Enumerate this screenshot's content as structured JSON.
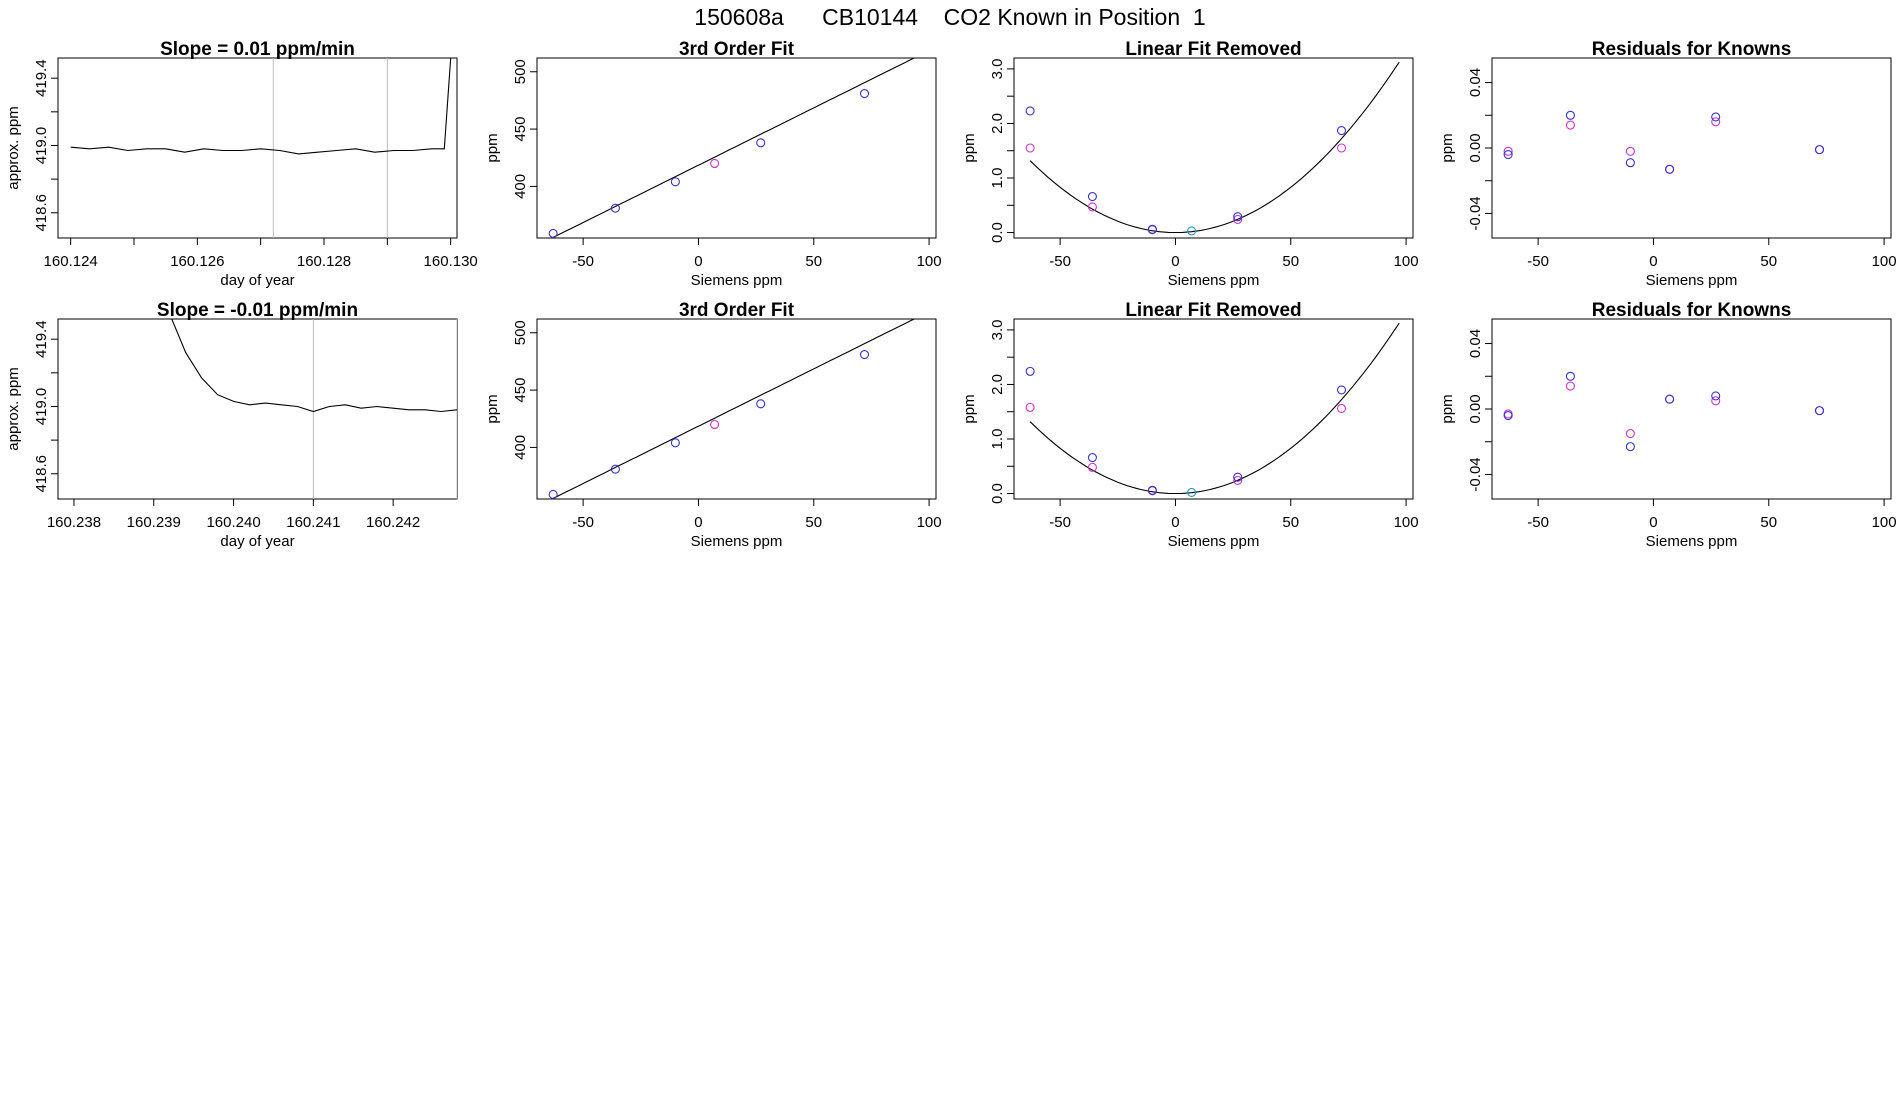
{
  "page_title": "150608a      CB10144    CO2 Known in Position  1",
  "colors": {
    "line": "#000000",
    "point_blue": "#3333cc",
    "point_magenta": "#cc33cc",
    "point_cyan": "#2299cc",
    "marker_line": "#bbbbbb"
  },
  "chart_data": [
    {
      "id": "r0c0",
      "type": "line",
      "title": "Slope =  0.01  ppm/min",
      "xlabel": "day of year",
      "ylabel": "approx. ppm",
      "xlim": [
        160.1238,
        160.1301
      ],
      "ylim": [
        418.45,
        419.52
      ],
      "xticks": [
        160.124,
        160.126,
        160.128,
        160.13
      ],
      "xtick_labels": [
        "160.124",
        "160.126",
        "160.128",
        "160.130"
      ],
      "minor_xticks": [
        160.125,
        160.127,
        160.129
      ],
      "yticks": [
        418.6,
        419.0,
        419.4
      ],
      "ytick_labels": [
        "418.6",
        "419.0",
        "419.4"
      ],
      "minor_yticks": [
        418.8,
        419.2
      ],
      "vlines": [
        160.1272,
        160.129
      ],
      "series": [
        {
          "x": [
            160.124,
            160.1243,
            160.1246,
            160.1249,
            160.1252,
            160.1255,
            160.1258,
            160.1261,
            160.1264,
            160.1267,
            160.127,
            160.1273,
            160.1276,
            160.1279,
            160.1282,
            160.1285,
            160.1288,
            160.1291,
            160.1294,
            160.1297,
            160.1299,
            160.13
          ],
          "y": [
            418.99,
            418.98,
            418.99,
            418.97,
            418.98,
            418.98,
            418.96,
            418.98,
            418.97,
            418.97,
            418.98,
            418.97,
            418.95,
            418.96,
            418.97,
            418.98,
            418.96,
            418.97,
            418.97,
            418.98,
            418.98,
            419.52
          ]
        }
      ]
    },
    {
      "id": "r0c1",
      "type": "scatter",
      "title": "3rd Order Fit",
      "xlabel": "Siemens ppm",
      "ylabel": "ppm",
      "xlim": [
        -70,
        103
      ],
      "ylim": [
        355,
        512
      ],
      "xticks": [
        -50,
        0,
        50,
        100
      ],
      "xtick_labels": [
        "-50",
        "0",
        "50",
        "100"
      ],
      "yticks": [
        400,
        450,
        500
      ],
      "ytick_labels": [
        "400",
        "450",
        "500"
      ],
      "curve": {
        "coefs": [
          418.5,
          1.0,
          0.0,
          0.0
        ],
        "x_range": [
          -63,
          97
        ]
      },
      "points_blue": {
        "x": [
          -63,
          -36,
          -10,
          27,
          72
        ],
        "y": [
          359,
          381,
          404,
          438,
          481
        ]
      },
      "points_magenta": {
        "x": [
          7
        ],
        "y": [
          420
        ]
      }
    },
    {
      "id": "r0c2",
      "type": "scatter",
      "title": "Linear Fit Removed",
      "xlabel": "Siemens ppm",
      "ylabel": "ppm",
      "xlim": [
        -70,
        103
      ],
      "ylim": [
        -0.1,
        3.2
      ],
      "xticks": [
        -50,
        0,
        50,
        100
      ],
      "xtick_labels": [
        "-50",
        "0",
        "50",
        "100"
      ],
      "yticks": [
        0,
        1,
        2,
        3
      ],
      "ytick_labels": [
        "0.0",
        "1.0",
        "2.0",
        "3.0"
      ],
      "minor_yticks": [
        0.5,
        1.5,
        2.5
      ],
      "curve": {
        "coefs": [
          0.0,
          0.0,
          0.000332,
          0.0
        ],
        "x_range": [
          -63,
          97
        ]
      },
      "points_blue": {
        "x": [
          -63,
          -36,
          -10,
          27,
          72
        ],
        "y": [
          2.23,
          0.66,
          0.06,
          0.29,
          1.87
        ]
      },
      "points_magenta": {
        "x": [
          -63,
          -36,
          -10,
          27,
          72
        ],
        "y": [
          1.55,
          0.47,
          0.05,
          0.24,
          1.55
        ]
      },
      "points_cyan": {
        "x": [
          7
        ],
        "y": [
          0.03
        ]
      }
    },
    {
      "id": "r0c3",
      "type": "scatter",
      "title": "Residuals for Knowns",
      "xlabel": "Siemens ppm",
      "ylabel": "ppm",
      "xlim": [
        -70,
        103
      ],
      "ylim": [
        -0.055,
        0.055
      ],
      "xticks": [
        -50,
        0,
        50,
        100
      ],
      "xtick_labels": [
        "-50",
        "0",
        "50",
        "100"
      ],
      "yticks": [
        -0.04,
        0,
        0.04
      ],
      "ytick_labels": [
        "-0.04",
        "0.00",
        "0.04"
      ],
      "minor_yticks": [
        -0.02,
        0.02
      ],
      "points_blue": {
        "x": [
          -63,
          -36,
          -10,
          7,
          27,
          72
        ],
        "y": [
          -0.004,
          0.02,
          -0.009,
          -0.013,
          0.019,
          -0.001
        ]
      },
      "points_magenta": {
        "x": [
          -63,
          -36,
          -10,
          7,
          27,
          72
        ],
        "y": [
          -0.002,
          0.014,
          -0.002,
          -0.013,
          0.016,
          -0.001
        ]
      }
    },
    {
      "id": "r1c0",
      "type": "line",
      "title": "Slope =  -0.01  ppm/min",
      "xlabel": "day of year",
      "ylabel": "approx. ppm",
      "xlim": [
        160.2378,
        160.2428
      ],
      "ylim": [
        418.45,
        419.52
      ],
      "xticks": [
        160.238,
        160.239,
        160.24,
        160.241,
        160.242
      ],
      "xtick_labels": [
        "160.238",
        "160.239",
        "160.240",
        "160.241",
        "160.242"
      ],
      "yticks": [
        418.6,
        419.0,
        419.4
      ],
      "ytick_labels": [
        "418.6",
        "419.0",
        "419.4"
      ],
      "minor_yticks": [
        418.8,
        419.2
      ],
      "vlines": [
        160.241,
        160.2428
      ],
      "series": [
        {
          "x": [
            160.2392,
            160.2394,
            160.2396,
            160.2398,
            160.24,
            160.2402,
            160.2404,
            160.2406,
            160.2408,
            160.241,
            160.2412,
            160.2414,
            160.2416,
            160.2418,
            160.242,
            160.2422,
            160.2424,
            160.2426,
            160.2428
          ],
          "y": [
            419.55,
            419.32,
            419.17,
            419.07,
            419.03,
            419.01,
            419.02,
            419.01,
            419.0,
            418.97,
            419.0,
            419.01,
            418.99,
            419.0,
            418.99,
            418.98,
            418.98,
            418.97,
            418.98
          ]
        }
      ]
    },
    {
      "id": "r1c1",
      "type": "scatter",
      "title": "3rd Order Fit",
      "xlabel": "Siemens ppm",
      "ylabel": "ppm",
      "xlim": [
        -70,
        103
      ],
      "ylim": [
        355,
        512
      ],
      "xticks": [
        -50,
        0,
        50,
        100
      ],
      "xtick_labels": [
        "-50",
        "0",
        "50",
        "100"
      ],
      "yticks": [
        400,
        450,
        500
      ],
      "ytick_labels": [
        "400",
        "450",
        "500"
      ],
      "curve": {
        "coefs": [
          418.5,
          1.0,
          0.0,
          0.0
        ],
        "x_range": [
          -63,
          97
        ]
      },
      "points_blue": {
        "x": [
          -63,
          -36,
          -10,
          27,
          72
        ],
        "y": [
          359,
          381,
          404,
          438,
          481
        ]
      },
      "points_magenta": {
        "x": [
          7
        ],
        "y": [
          420
        ]
      }
    },
    {
      "id": "r1c2",
      "type": "scatter",
      "title": "Linear Fit Removed",
      "xlabel": "Siemens ppm",
      "ylabel": "ppm",
      "xlim": [
        -70,
        103
      ],
      "ylim": [
        -0.1,
        3.2
      ],
      "xticks": [
        -50,
        0,
        50,
        100
      ],
      "xtick_labels": [
        "-50",
        "0",
        "50",
        "100"
      ],
      "yticks": [
        0,
        1,
        2,
        3
      ],
      "ytick_labels": [
        "0.0",
        "1.0",
        "2.0",
        "3.0"
      ],
      "minor_yticks": [
        0.5,
        1.5,
        2.5
      ],
      "curve": {
        "coefs": [
          0.0,
          0.0,
          0.000332,
          0.0
        ],
        "x_range": [
          -63,
          97
        ]
      },
      "points_blue": {
        "x": [
          -63,
          -36,
          -10,
          27,
          72
        ],
        "y": [
          2.24,
          0.66,
          0.06,
          0.3,
          1.9
        ]
      },
      "points_magenta": {
        "x": [
          -63,
          -36,
          -10,
          27,
          72
        ],
        "y": [
          1.58,
          0.48,
          0.05,
          0.24,
          1.56
        ]
      },
      "points_cyan": {
        "x": [
          7
        ],
        "y": [
          0.02
        ]
      }
    },
    {
      "id": "r1c3",
      "type": "scatter",
      "title": "Residuals for Knowns",
      "xlabel": "Siemens ppm",
      "ylabel": "ppm",
      "xlim": [
        -70,
        103
      ],
      "ylim": [
        -0.055,
        0.055
      ],
      "xticks": [
        -50,
        0,
        50,
        100
      ],
      "xtick_labels": [
        "-50",
        "0",
        "50",
        "100"
      ],
      "yticks": [
        -0.04,
        0,
        0.04
      ],
      "ytick_labels": [
        "-0.04",
        "0.00",
        "0.04"
      ],
      "minor_yticks": [
        -0.02,
        0.02
      ],
      "points_blue": {
        "x": [
          -63,
          -36,
          -10,
          7,
          27,
          72
        ],
        "y": [
          -0.004,
          0.02,
          -0.023,
          0.006,
          0.008,
          -0.001
        ]
      },
      "points_magenta": {
        "x": [
          -63,
          -36,
          -10,
          7,
          27,
          72
        ],
        "y": [
          -0.003,
          0.014,
          -0.015,
          0.006,
          0.005,
          -0.001
        ]
      }
    }
  ]
}
